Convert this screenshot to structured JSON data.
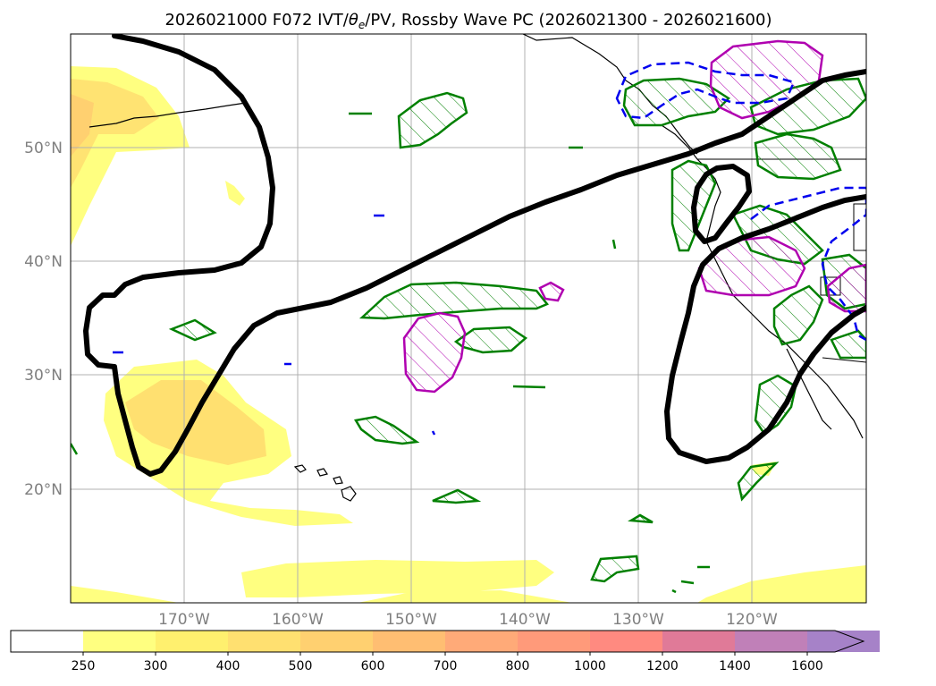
{
  "title": {
    "prefix": "2026021000 F072 IVT/",
    "theta": "θ",
    "theta_sub": "e",
    "suffix": "/PV, Rossby Wave PC (2026021300 - 2026021600)"
  },
  "lat_labels": [
    "50°N",
    "40°N",
    "30°N",
    "20°N"
  ],
  "lon_labels": [
    "170°W",
    "160°W",
    "150°W",
    "140°W",
    "130°W",
    "120°W"
  ],
  "colorbar": {
    "ticks": [
      "250",
      "300",
      "400",
      "500",
      "600",
      "700",
      "800",
      "1000",
      "1200",
      "1400",
      "1600"
    ],
    "colors": [
      "#ffff80",
      "#fff06e",
      "#ffe070",
      "#ffd070",
      "#ffbe72",
      "#ffaa78",
      "#ff9a7a",
      "#ff8a80",
      "#e07a98",
      "#c080b8",
      "#a682c8"
    ],
    "extend_color": "#a682c8",
    "unit_note": ""
  },
  "colors": {
    "rossby_wave": "#000000",
    "green_hatch": "#008000",
    "magenta_hatch": "#b000b0",
    "blue_dashed": "#0000ee",
    "grid": "#b0b0b0",
    "coast": "#000000"
  }
}
